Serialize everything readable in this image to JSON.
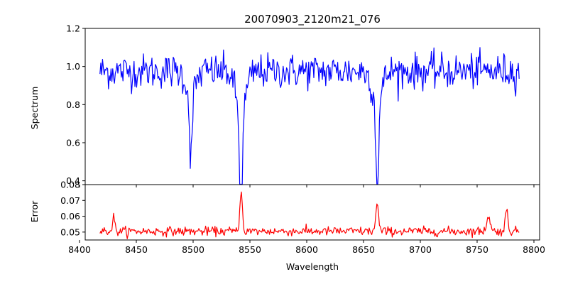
{
  "chart_data": [
    {
      "type": "line",
      "title": "20070903_2120m21_076",
      "xlabel": "",
      "ylabel": "Spectrum",
      "xlim": [
        8405,
        8805
      ],
      "ylim": [
        0.38,
        1.2
      ],
      "xticks": [
        8400,
        8450,
        8500,
        8550,
        8600,
        8650,
        8700,
        8750,
        8800
      ],
      "yticks": [
        0.4,
        0.6,
        0.8,
        1.0,
        1.2
      ],
      "ytick_labels": [
        "0.4",
        "0.6",
        "0.8",
        "1.0",
        "1.2"
      ],
      "show_xtick_labels": false,
      "grid": false,
      "series": [
        {
          "color": "#0000ff",
          "x_start": 8418,
          "x_end": 8787,
          "x_step": 0.75,
          "baseline": 0.975,
          "noise": 0.045,
          "lines": [
            {
              "center": 8498.0,
              "depth": 0.33,
              "width": 1.2
            },
            {
              "center": 8542.1,
              "depth": 0.57,
              "width": 1.3
            },
            {
              "center": 8662.1,
              "depth": 0.46,
              "width": 1.2
            }
          ]
        }
      ]
    },
    {
      "type": "line",
      "title": "",
      "xlabel": "Wavelength",
      "ylabel": "Error",
      "xlim": [
        8405,
        8805
      ],
      "ylim": [
        0.045,
        0.08
      ],
      "xticks": [
        8400,
        8450,
        8500,
        8550,
        8600,
        8650,
        8700,
        8750,
        8800
      ],
      "yticks": [
        0.05,
        0.06,
        0.07,
        0.08
      ],
      "ytick_labels": [
        "0.05",
        "0.06",
        "0.07",
        "0.08"
      ],
      "show_xtick_labels": true,
      "grid": false,
      "series": [
        {
          "color": "#ff0000",
          "x_start": 8418,
          "x_end": 8787,
          "x_step": 0.75,
          "baseline": 0.0505,
          "noise": 0.0014,
          "peaks": [
            {
              "center": 8430.0,
              "height": 0.009,
              "width": 1.0
            },
            {
              "center": 8542.3,
              "height": 0.028,
              "width": 1.0
            },
            {
              "center": 8662.0,
              "height": 0.017,
              "width": 1.2
            },
            {
              "center": 8760.0,
              "height": 0.01,
              "width": 1.5
            },
            {
              "center": 8776.0,
              "height": 0.013,
              "width": 1.2
            }
          ]
        }
      ]
    }
  ]
}
